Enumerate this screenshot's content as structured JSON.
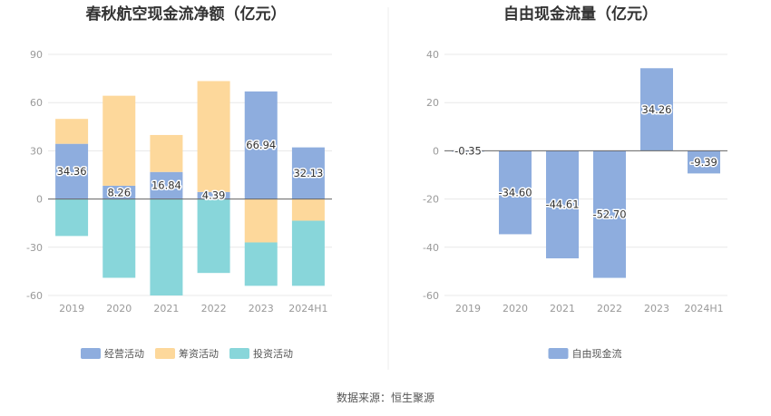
{
  "charts": [
    {
      "title": "春秋航空现金流净额（亿元）",
      "chart_data": {
        "type": "bar",
        "stacked": true,
        "categories": [
          "2019",
          "2020",
          "2021",
          "2022",
          "2023",
          "2024H1"
        ],
        "ylim": [
          -60,
          90
        ],
        "yticks": [
          "90",
          "60",
          "30",
          "0",
          "-30",
          "-60"
        ],
        "ytick_values": [
          90,
          60,
          30,
          0,
          -30,
          -60
        ],
        "grid": true,
        "legend_position": "bottom",
        "series": [
          {
            "name": "经营活动",
            "color": "#8eadde",
            "values": [
              34.36,
              8.26,
              16.84,
              4.39,
              66.94,
              32.13
            ],
            "labels": [
              "34.36",
              "8.26",
              "16.84",
              "4.39",
              "66.94",
              "32.13"
            ]
          },
          {
            "name": "筹资活动",
            "color": "#fdd89b",
            "values": [
              15.5,
              56.0,
              23.0,
              69.0,
              -27.0,
              -13.5
            ]
          },
          {
            "name": "投资活动",
            "color": "#88d6da",
            "values": [
              -23.0,
              -49.0,
              -60.0,
              -46.0,
              -27.0,
              -40.5
            ]
          }
        ]
      }
    },
    {
      "title": "自由现金流量（亿元）",
      "chart_data": {
        "type": "bar",
        "categories": [
          "2019",
          "2020",
          "2021",
          "2022",
          "2023",
          "2024H1"
        ],
        "ylim": [
          -60,
          40
        ],
        "yticks": [
          "40",
          "20",
          "0",
          "-20",
          "-40",
          "-60"
        ],
        "ytick_values": [
          40,
          20,
          0,
          -20,
          -40,
          -60
        ],
        "grid": true,
        "legend_position": "bottom",
        "series": [
          {
            "name": "自由现金流",
            "color": "#8eadde",
            "values": [
              -0.35,
              -34.6,
              -44.61,
              -52.7,
              34.26,
              -9.39
            ],
            "labels": [
              "-0.35",
              "-34.60",
              "-44.61",
              "-52.70",
              "34.26",
              "-9.39"
            ]
          }
        ]
      }
    }
  ],
  "source": "数据来源：恒生聚源"
}
